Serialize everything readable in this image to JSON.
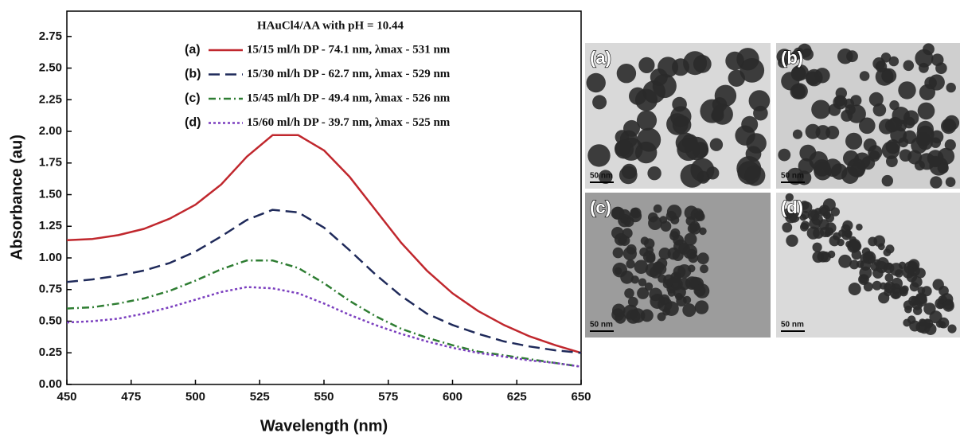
{
  "chart_data": {
    "type": "line",
    "legend_title": "HAuCl4/AA with pH = 10.44",
    "x_label": "Wavelength (nm)",
    "y_label": "Absorbance (au)",
    "x": [
      450,
      460,
      470,
      480,
      490,
      500,
      510,
      520,
      530,
      540,
      550,
      560,
      570,
      580,
      590,
      600,
      610,
      620,
      630,
      640,
      650
    ],
    "series": [
      {
        "label": "(a)",
        "name": "15/15 ml/h DP - 74.1 nm, λmax - 531 nm",
        "color": "#c0272d",
        "dash": "solid",
        "values": [
          1.14,
          1.15,
          1.18,
          1.23,
          1.31,
          1.42,
          1.58,
          1.8,
          1.97,
          1.97,
          1.85,
          1.64,
          1.38,
          1.12,
          0.9,
          0.72,
          0.58,
          0.47,
          0.38,
          0.31,
          0.25
        ]
      },
      {
        "label": "(b)",
        "name": "15/30 ml/h DP - 62.7 nm, λmax - 529 nm",
        "color": "#1f2a5a",
        "dash": "dashed",
        "values": [
          0.81,
          0.83,
          0.86,
          0.9,
          0.96,
          1.05,
          1.17,
          1.3,
          1.38,
          1.36,
          1.24,
          1.06,
          0.87,
          0.7,
          0.56,
          0.47,
          0.4,
          0.34,
          0.3,
          0.27,
          0.25
        ]
      },
      {
        "label": "(c)",
        "name": "15/45 ml/h DP - 49.4 nm, λmax - 526 nm",
        "color": "#2e7d32",
        "dash": "dashdot",
        "values": [
          0.6,
          0.61,
          0.64,
          0.68,
          0.74,
          0.82,
          0.91,
          0.98,
          0.98,
          0.92,
          0.8,
          0.66,
          0.54,
          0.44,
          0.37,
          0.31,
          0.26,
          0.23,
          0.2,
          0.17,
          0.14
        ]
      },
      {
        "label": "(d)",
        "name": "15/60 ml/h DP - 39.7 nm, λmax - 525 nm",
        "color": "#7b3fbf",
        "dash": "dotted",
        "values": [
          0.49,
          0.5,
          0.52,
          0.56,
          0.61,
          0.67,
          0.73,
          0.77,
          0.76,
          0.72,
          0.64,
          0.55,
          0.47,
          0.4,
          0.34,
          0.29,
          0.25,
          0.22,
          0.19,
          0.17,
          0.14
        ]
      }
    ],
    "xlim": [
      450,
      650
    ],
    "xticks": [
      450,
      475,
      500,
      525,
      550,
      575,
      600,
      625,
      650
    ],
    "ylim": [
      0,
      2.95
    ],
    "yticks": [
      {
        "value": 0,
        "label": "0.00"
      },
      0.25,
      {
        "value": 0.5,
        "label": "0.50"
      },
      0.75,
      {
        "value": 1,
        "label": "1.00"
      },
      1.25,
      {
        "value": 1.5,
        "label": "1.50"
      },
      1.75,
      {
        "value": 2,
        "label": "2.00"
      },
      2.25,
      {
        "value": 2.5,
        "label": "2.50"
      },
      2.75
    ]
  },
  "images": [
    {
      "label": "(a)",
      "scale_bar": "50 nm"
    },
    {
      "label": "(b)",
      "scale_bar": "50 nm"
    },
    {
      "label": "(c)",
      "scale_bar": "50 nm"
    },
    {
      "label": "(d)",
      "scale_bar": "50 nm"
    }
  ]
}
